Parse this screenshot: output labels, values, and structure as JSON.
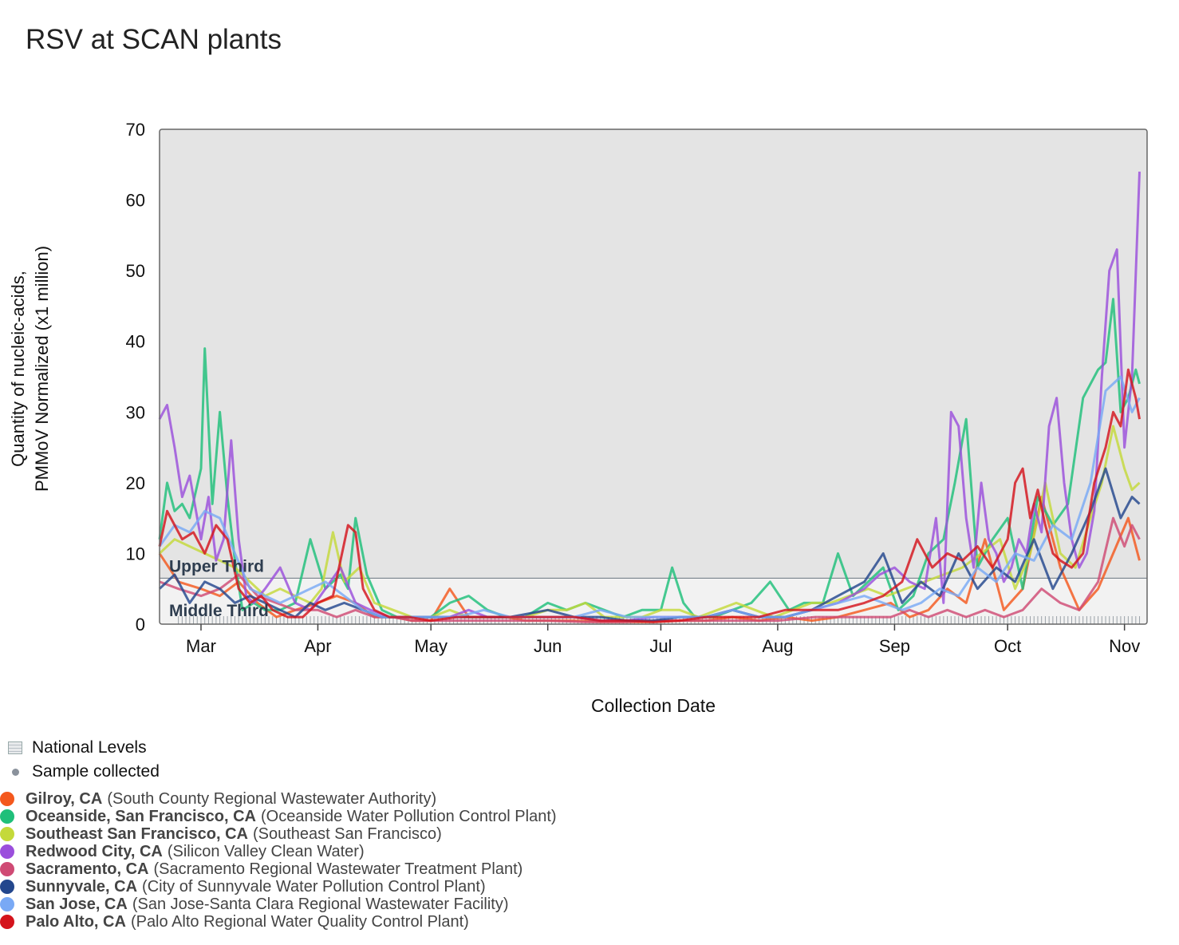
{
  "title": "RSV at SCAN plants",
  "legend": {
    "national_levels": "National Levels",
    "sample_collected": "Sample collected",
    "sites": [
      {
        "city": "Gilroy, CA",
        "plant": "(South County Regional Wastewater Authority)",
        "color": "#f4581d"
      },
      {
        "city": "Oceanside, San Francisco, CA",
        "plant": "(Oceanside Water Pollution Control Plant)",
        "color": "#1fbf7a"
      },
      {
        "city": "Southeast San Francisco, CA",
        "plant": "(Southeast San Francisco)",
        "color": "#c4d93a"
      },
      {
        "city": "Redwood City, CA",
        "plant": "(Silicon Valley Clean Water)",
        "color": "#9b4fdc"
      },
      {
        "city": "Sacramento, CA",
        "plant": "(Sacramento Regional Wastewater Treatment Plant)",
        "color": "#cf4a74"
      },
      {
        "city": "Sunnyvale, CA",
        "plant": "(City of Sunnyvale Water Pollution Control Plant)",
        "color": "#23478d"
      },
      {
        "city": "San Jose, CA",
        "plant": "(San Jose-Santa Clara Regional Wastewater Facility)",
        "color": "#79a9f5"
      },
      {
        "city": "Palo Alto, CA",
        "plant": "(Palo Alto Regional Water Quality Control Plant)",
        "color": "#d4141c"
      }
    ]
  },
  "chart_data": {
    "type": "line",
    "title": "RSV at SCAN plants",
    "xlabel": "Collection Date",
    "ylabel": [
      "Quantity of nucleic-acids,",
      "PMMoV Normalized (x1 million)"
    ],
    "ylim": [
      0,
      70
    ],
    "yticks": [
      0,
      10,
      20,
      30,
      40,
      50,
      60,
      70
    ],
    "xlim": [
      "02-19",
      "11-07"
    ],
    "xticks": [
      {
        "date": "03-01",
        "label": "Mar"
      },
      {
        "date": "04-01",
        "label": "Apr"
      },
      {
        "date": "05-01",
        "label": "May"
      },
      {
        "date": "06-01",
        "label": "Jun"
      },
      {
        "date": "07-01",
        "label": "Jul"
      },
      {
        "date": "08-01",
        "label": "Aug"
      },
      {
        "date": "09-01",
        "label": "Sep"
      },
      {
        "date": "10-01",
        "label": "Oct"
      },
      {
        "date": "11-01",
        "label": "Nov"
      }
    ],
    "bands": [
      {
        "label": "Upper Third",
        "from": 6.5,
        "to": 70,
        "color": "#e4e4e4"
      },
      {
        "label": "Middle Third",
        "from": 0,
        "to": 6.5,
        "color": "#f2f2f2"
      }
    ],
    "grid": false,
    "series": [
      {
        "name": "Gilroy, CA",
        "color": "#f4581d",
        "x": [
          "02-19",
          "02-24",
          "03-01",
          "03-06",
          "03-11",
          "03-16",
          "03-21",
          "03-26",
          "04-01",
          "04-06",
          "04-11",
          "04-16",
          "04-21",
          "04-26",
          "05-01",
          "05-06",
          "05-11",
          "05-16",
          "05-21",
          "05-26",
          "06-01",
          "06-08",
          "06-15",
          "06-22",
          "06-29",
          "07-06",
          "07-13",
          "07-20",
          "07-27",
          "08-03",
          "08-10",
          "08-17",
          "08-24",
          "08-31",
          "09-05",
          "09-10",
          "09-15",
          "09-20",
          "09-25",
          "09-30",
          "10-05",
          "10-10",
          "10-15",
          "10-20",
          "10-25",
          "10-29",
          "11-02",
          "11-05"
        ],
        "y": [
          10,
          6,
          5,
          4,
          6,
          3,
          1,
          2,
          3,
          4,
          3,
          1,
          1,
          0.5,
          0.5,
          5,
          1,
          1,
          1,
          0.5,
          0.5,
          0.5,
          0.3,
          0.3,
          0.3,
          0.5,
          0.5,
          1,
          0.5,
          1,
          0.5,
          1,
          2,
          3,
          1,
          2,
          5,
          3,
          12,
          2,
          5,
          18,
          8,
          2,
          5,
          10,
          15,
          9
        ]
      },
      {
        "name": "Oceanside, San Francisco, CA",
        "color": "#1fbf7a",
        "x": [
          "02-19",
          "02-21",
          "02-23",
          "02-25",
          "02-27",
          "03-01",
          "03-02",
          "03-04",
          "03-06",
          "03-08",
          "03-10",
          "03-12",
          "03-15",
          "03-18",
          "03-22",
          "03-26",
          "03-30",
          "04-03",
          "04-07",
          "04-09",
          "04-11",
          "04-14",
          "04-18",
          "04-22",
          "04-26",
          "05-01",
          "05-06",
          "05-11",
          "05-16",
          "05-21",
          "05-26",
          "06-01",
          "06-06",
          "06-11",
          "06-16",
          "06-21",
          "06-26",
          "07-01",
          "07-04",
          "07-07",
          "07-10",
          "07-15",
          "07-20",
          "07-25",
          "07-30",
          "08-04",
          "08-08",
          "08-13",
          "08-17",
          "08-21",
          "08-25",
          "08-29",
          "09-02",
          "09-06",
          "09-10",
          "09-14",
          "09-17",
          "09-20",
          "09-23",
          "09-27",
          "10-01",
          "10-05",
          "10-09",
          "10-13",
          "10-17",
          "10-21",
          "10-25",
          "10-27",
          "10-29",
          "10-31",
          "11-02",
          "11-04",
          "11-05"
        ],
        "y": [
          12,
          20,
          16,
          17,
          15,
          22,
          39,
          17,
          30,
          18,
          9,
          2,
          3,
          2,
          2,
          3,
          12,
          5,
          7,
          5,
          15,
          7,
          2,
          1,
          1,
          1,
          3,
          4,
          2,
          1,
          1,
          3,
          2,
          3,
          2,
          1,
          2,
          2,
          8,
          3,
          1,
          1,
          2,
          3,
          6,
          2,
          3,
          3,
          10,
          4,
          6,
          8,
          2,
          4,
          10,
          12,
          20,
          29,
          8,
          12,
          15,
          5,
          18,
          14,
          17,
          32,
          36,
          37,
          46,
          30,
          32,
          36,
          34
        ]
      },
      {
        "name": "Southeast San Francisco, CA",
        "color": "#c4d93a",
        "x": [
          "02-19",
          "02-23",
          "02-27",
          "03-02",
          "03-06",
          "03-10",
          "03-14",
          "03-18",
          "03-22",
          "03-26",
          "03-30",
          "04-02",
          "04-05",
          "04-08",
          "04-12",
          "04-16",
          "04-21",
          "04-26",
          "05-01",
          "05-06",
          "05-11",
          "05-16",
          "05-21",
          "05-26",
          "06-01",
          "06-06",
          "06-11",
          "06-16",
          "06-21",
          "06-26",
          "07-01",
          "07-06",
          "07-11",
          "07-16",
          "07-21",
          "07-26",
          "07-31",
          "08-05",
          "08-10",
          "08-15",
          "08-20",
          "08-25",
          "08-30",
          "09-04",
          "09-09",
          "09-14",
          "09-19",
          "09-24",
          "09-29",
          "10-03",
          "10-07",
          "10-11",
          "10-15",
          "10-19",
          "10-23",
          "10-26",
          "10-29",
          "11-01",
          "11-03",
          "11-05"
        ],
        "y": [
          10,
          12,
          11,
          10,
          9,
          8,
          6,
          4,
          5,
          4,
          3,
          5,
          13,
          6,
          8,
          3,
          2,
          1,
          1,
          2,
          1,
          1,
          1,
          1,
          2,
          2,
          3,
          1,
          1,
          1,
          2,
          2,
          1,
          2,
          3,
          2,
          1,
          2,
          3,
          3,
          4,
          5,
          4,
          5,
          6,
          7,
          8,
          10,
          12,
          5,
          10,
          20,
          10,
          8,
          15,
          20,
          28,
          22,
          19,
          20
        ]
      },
      {
        "name": "Redwood City, CA",
        "color": "#9b4fdc",
        "x": [
          "02-19",
          "02-21",
          "02-23",
          "02-25",
          "02-27",
          "03-01",
          "03-03",
          "03-05",
          "03-07",
          "03-09",
          "03-11",
          "03-13",
          "03-15",
          "03-18",
          "03-22",
          "03-26",
          "03-30",
          "04-03",
          "04-07",
          "04-11",
          "04-15",
          "04-20",
          "04-25",
          "05-01",
          "05-06",
          "05-11",
          "05-16",
          "05-21",
          "05-26",
          "06-01",
          "06-08",
          "06-15",
          "06-22",
          "06-29",
          "07-06",
          "07-13",
          "07-20",
          "07-27",
          "08-03",
          "08-10",
          "08-17",
          "08-24",
          "08-28",
          "09-01",
          "09-05",
          "09-09",
          "09-12",
          "09-14",
          "09-16",
          "09-18",
          "09-20",
          "09-22",
          "09-24",
          "09-26",
          "09-28",
          "09-30",
          "10-02",
          "10-04",
          "10-06",
          "10-08",
          "10-10",
          "10-12",
          "10-14",
          "10-16",
          "10-18",
          "10-20",
          "10-22",
          "10-24",
          "10-26",
          "10-28",
          "10-30",
          "11-01",
          "11-03",
          "11-05"
        ],
        "y": [
          29,
          31,
          25,
          18,
          21,
          12,
          18,
          9,
          12,
          26,
          12,
          4,
          3,
          5,
          8,
          3,
          2,
          5,
          8,
          3,
          2,
          1,
          1,
          1,
          1,
          2,
          1,
          1,
          1,
          1,
          1,
          0.5,
          0.5,
          1,
          1,
          1,
          2,
          1,
          1,
          2,
          3,
          5,
          7,
          8,
          6,
          5,
          15,
          3,
          30,
          28,
          15,
          8,
          20,
          12,
          10,
          6,
          8,
          12,
          10,
          17,
          13,
          28,
          32,
          20,
          12,
          8,
          10,
          16,
          35,
          50,
          53,
          25,
          35,
          64
        ]
      },
      {
        "name": "Sacramento, CA",
        "color": "#cf4a74",
        "x": [
          "02-19",
          "02-24",
          "03-01",
          "03-06",
          "03-11",
          "03-16",
          "03-21",
          "03-26",
          "04-01",
          "04-06",
          "04-11",
          "04-16",
          "04-21",
          "04-26",
          "05-01",
          "05-11",
          "05-21",
          "06-01",
          "06-11",
          "06-21",
          "07-01",
          "07-11",
          "07-21",
          "08-01",
          "08-11",
          "08-21",
          "08-31",
          "09-05",
          "09-10",
          "09-15",
          "09-20",
          "09-25",
          "09-30",
          "10-05",
          "10-10",
          "10-15",
          "10-20",
          "10-25",
          "10-29",
          "11-01",
          "11-03",
          "11-05"
        ],
        "y": [
          6,
          5,
          4,
          5,
          7,
          4,
          3,
          2,
          2,
          1,
          2,
          1,
          1,
          0.5,
          0.5,
          0.5,
          0.5,
          0.5,
          0.3,
          0.3,
          0.5,
          0.5,
          0.5,
          0.5,
          1,
          1,
          1,
          2,
          1,
          2,
          1,
          2,
          1,
          2,
          5,
          3,
          2,
          6,
          15,
          11,
          14,
          12
        ]
      },
      {
        "name": "Sunnyvale, CA",
        "color": "#23478d",
        "x": [
          "02-19",
          "02-23",
          "02-27",
          "03-02",
          "03-06",
          "03-10",
          "03-14",
          "03-18",
          "03-22",
          "03-26",
          "03-30",
          "04-03",
          "04-08",
          "04-13",
          "04-18",
          "04-23",
          "05-01",
          "05-08",
          "05-15",
          "05-22",
          "06-01",
          "06-08",
          "06-15",
          "06-22",
          "06-29",
          "07-06",
          "07-13",
          "07-20",
          "07-27",
          "08-03",
          "08-10",
          "08-17",
          "08-24",
          "08-29",
          "09-03",
          "09-08",
          "09-13",
          "09-18",
          "09-23",
          "09-28",
          "10-03",
          "10-08",
          "10-13",
          "10-18",
          "10-23",
          "10-27",
          "10-31",
          "11-03",
          "11-05"
        ],
        "y": [
          5,
          7,
          3,
          6,
          5,
          3,
          4,
          3,
          2,
          1,
          3,
          2,
          3,
          2,
          1,
          1,
          1,
          1,
          1,
          1,
          2,
          1,
          1,
          0.5,
          0.5,
          1,
          1,
          2,
          1,
          1,
          2,
          4,
          6,
          10,
          3,
          6,
          4,
          10,
          5,
          8,
          6,
          12,
          5,
          10,
          16,
          22,
          15,
          18,
          17
        ]
      },
      {
        "name": "San Jose, CA",
        "color": "#79a9f5",
        "x": [
          "02-19",
          "02-23",
          "02-27",
          "03-02",
          "03-06",
          "03-10",
          "03-14",
          "03-18",
          "03-22",
          "03-26",
          "03-30",
          "04-03",
          "04-08",
          "04-13",
          "04-18",
          "04-23",
          "05-01",
          "05-08",
          "05-15",
          "05-22",
          "06-01",
          "06-08",
          "06-15",
          "06-22",
          "06-29",
          "07-06",
          "07-13",
          "07-20",
          "07-27",
          "08-03",
          "08-10",
          "08-17",
          "08-24",
          "08-29",
          "09-03",
          "09-08",
          "09-13",
          "09-18",
          "09-23",
          "09-28",
          "10-03",
          "10-08",
          "10-13",
          "10-18",
          "10-23",
          "10-27",
          "10-31",
          "11-03",
          "11-05"
        ],
        "y": [
          11,
          14,
          13,
          16,
          15,
          10,
          5,
          4,
          3,
          4,
          5,
          6,
          4,
          2,
          1,
          1,
          1,
          1,
          2,
          1,
          1,
          1,
          2,
          1,
          1,
          1,
          1,
          2,
          1,
          1,
          2,
          3,
          4,
          3,
          2,
          3,
          5,
          4,
          8,
          6,
          10,
          9,
          14,
          12,
          20,
          33,
          35,
          30,
          32
        ]
      },
      {
        "name": "Palo Alto, CA",
        "color": "#d4141c",
        "x": [
          "02-19",
          "02-21",
          "02-23",
          "02-25",
          "02-28",
          "03-02",
          "03-05",
          "03-08",
          "03-11",
          "03-14",
          "03-17",
          "03-20",
          "03-24",
          "03-28",
          "04-01",
          "04-05",
          "04-09",
          "04-11",
          "04-13",
          "04-16",
          "04-20",
          "04-25",
          "05-01",
          "05-08",
          "05-15",
          "05-22",
          "06-01",
          "06-08",
          "06-15",
          "06-22",
          "06-29",
          "07-06",
          "07-13",
          "07-20",
          "07-27",
          "08-03",
          "08-10",
          "08-17",
          "08-24",
          "08-29",
          "09-03",
          "09-07",
          "09-11",
          "09-15",
          "09-19",
          "09-23",
          "09-27",
          "10-01",
          "10-03",
          "10-05",
          "10-07",
          "10-09",
          "10-11",
          "10-13",
          "10-15",
          "10-18",
          "10-21",
          "10-24",
          "10-27",
          "10-29",
          "10-31",
          "11-02",
          "11-04",
          "11-05"
        ],
        "y": [
          11,
          16,
          14,
          12,
          13,
          10,
          14,
          12,
          5,
          3,
          4,
          2,
          1,
          1,
          3,
          4,
          14,
          13,
          5,
          2,
          1,
          1,
          0.5,
          1,
          1,
          1,
          1,
          1,
          0.5,
          0.5,
          0.3,
          0.5,
          1,
          1,
          1,
          2,
          2,
          2,
          3,
          4,
          6,
          12,
          8,
          10,
          9,
          11,
          8,
          12,
          20,
          22,
          15,
          19,
          14,
          10,
          9,
          8,
          10,
          20,
          25,
          30,
          28,
          36,
          32,
          29
        ]
      }
    ]
  }
}
